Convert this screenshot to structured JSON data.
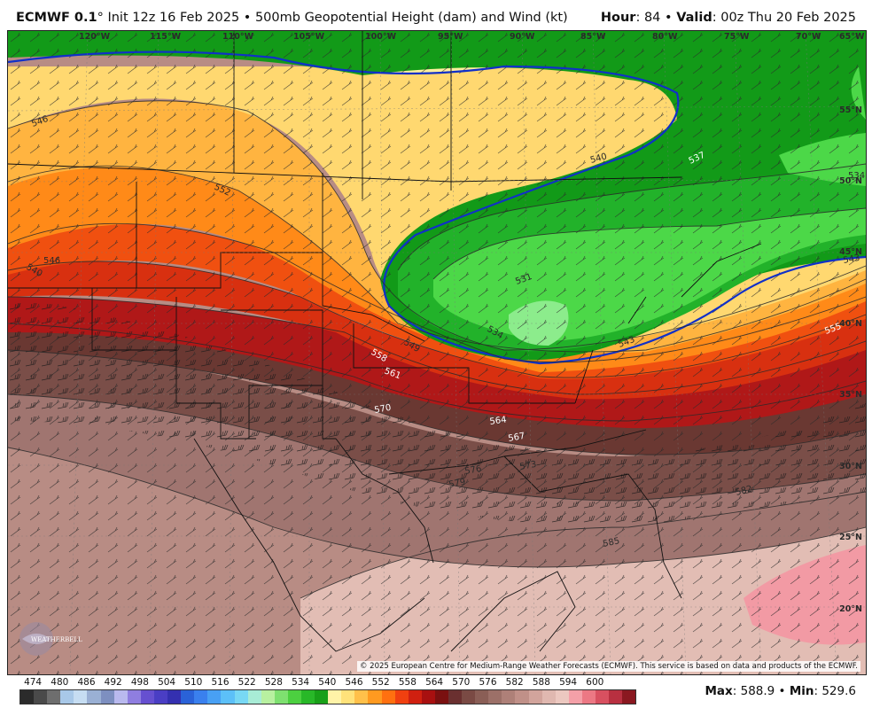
{
  "header": {
    "model": "ECMWF 0.1",
    "degree": "°",
    "init": " Init 12z 16 Feb 2025",
    "bullet": " • ",
    "product": "500mb Geopotential Height (dam) and Wind (kt)",
    "hour_label": "Hour",
    "hour_value": ": 84",
    "valid_label": "Valid",
    "valid_value": ": 00z Thu 20 Feb 2025"
  },
  "map": {
    "longitude_labels": [
      "120°W",
      "115°W",
      "110°W",
      "105°W",
      "100°W",
      "95°W",
      "90°W",
      "85°W",
      "80°W",
      "75°W",
      "70°W",
      "65°W"
    ],
    "latitude_labels": [
      "55°N",
      "50°N",
      "45°N",
      "40°N",
      "35°N",
      "30°N",
      "25°N",
      "20°N"
    ],
    "contour_labels": [
      "546",
      "552",
      "546",
      "540",
      "549",
      "558",
      "561",
      "570",
      "564",
      "567",
      "573",
      "576",
      "579",
      "582",
      "585",
      "540",
      "537",
      "531",
      "534",
      "543",
      "555",
      "534",
      "543"
    ],
    "copyright": "© 2025 European Centre for Medium-Range Weather Forecasts (ECMWF). This service is based on data and products of the ECMWF.",
    "logo_text": "WEATHERBELL"
  },
  "legend": {
    "labels": [
      "474",
      "480",
      "486",
      "492",
      "498",
      "504",
      "510",
      "516",
      "522",
      "528",
      "534",
      "540",
      "546",
      "552",
      "558",
      "564",
      "570",
      "576",
      "582",
      "588",
      "594",
      "600"
    ],
    "colors": [
      "#2b2b2b",
      "#4a4a4a",
      "#6e6e6e",
      "#a8c8e8",
      "#c6ddf2",
      "#9ab0d4",
      "#7d8fc0",
      "#b9b9ee",
      "#8f7ee0",
      "#6650d0",
      "#4a3ec4",
      "#3430b0",
      "#2a62d8",
      "#3a80ee",
      "#48a0f4",
      "#5cc0f8",
      "#78d8f4",
      "#a8ecd6",
      "#b8f0a0",
      "#7ee070",
      "#4cd040",
      "#28b828",
      "#18a018",
      "#fff3a8",
      "#ffe27a",
      "#ffc04a",
      "#ff9a20",
      "#ff7010",
      "#f04010",
      "#d02010",
      "#a81010",
      "#7a1010",
      "#6a3030",
      "#7a4a44",
      "#8a5e56",
      "#9c7068",
      "#ae8078",
      "#c09088",
      "#d2a49c",
      "#e0b8b0",
      "#ecc8c0",
      "#f4a0a8",
      "#ec7884",
      "#d85060",
      "#b83040",
      "#8a1820"
    ],
    "max_label": "Max",
    "max_value": ": 588.9",
    "min_label": "Min",
    "min_value": ": 529.6"
  }
}
